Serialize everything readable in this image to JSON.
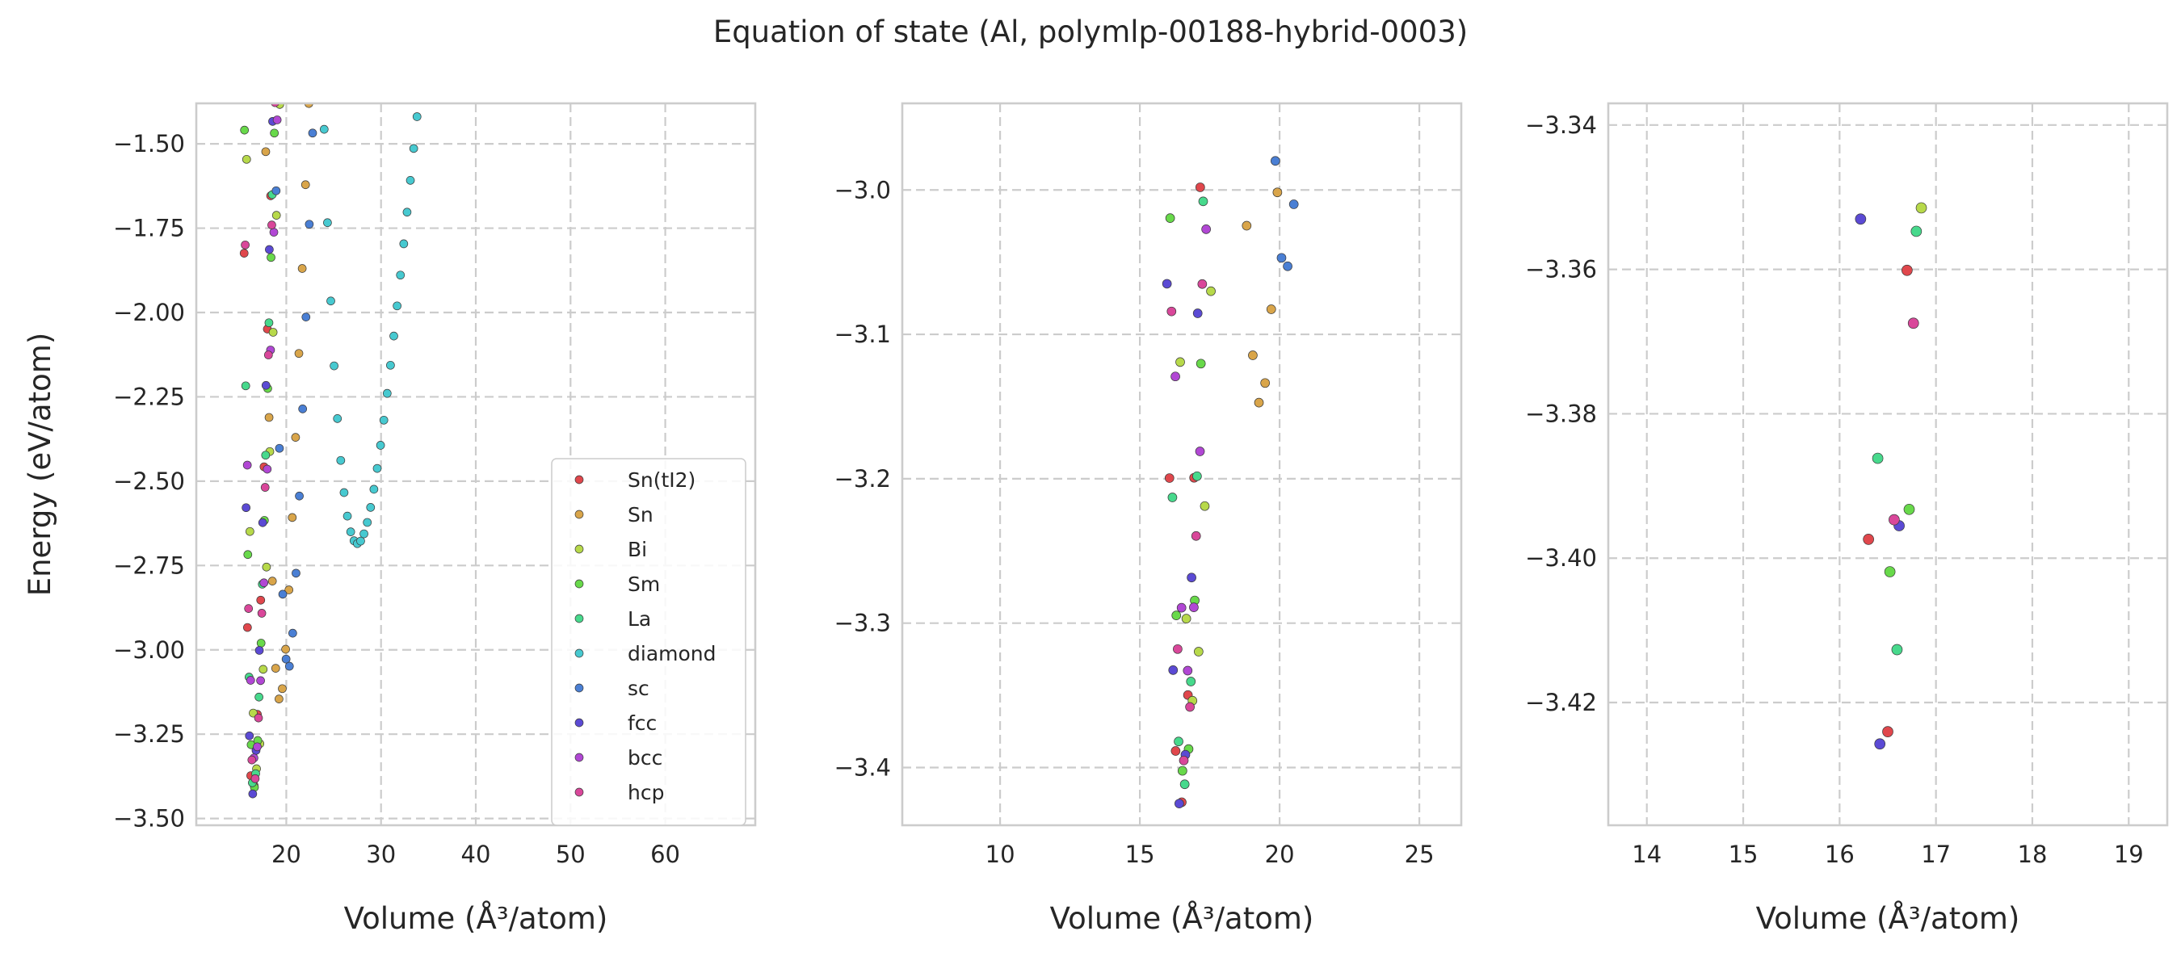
{
  "figure": {
    "title": "Equation of state (Al, polymlp-00188-hybrid-0003)"
  },
  "chart_data": {
    "type": "scatter",
    "title": "Equation of state (Al, polymlp-00188-hybrid-0003)",
    "xlabel": "Volume (Å³/atom)",
    "ylabel": "Energy (eV/atom)",
    "grid": true,
    "legend_placement": "lower-right of first panel",
    "series": [
      {
        "name": "Sn(tI2)",
        "color": "#e0474c",
        "shape": "morse",
        "v0": 16.45,
        "e0": -3.427,
        "a": 0.52,
        "range": [
          11.0,
          42.0
        ]
      },
      {
        "name": "Sn",
        "color": "#d9a54a",
        "shape": "morse",
        "v0": 19.3,
        "e0": -3.148,
        "a": 0.32,
        "range": [
          12.8,
          48.0
        ]
      },
      {
        "name": "Bi",
        "color": "#b7d94a",
        "shape": "morse",
        "v0": 16.9,
        "e0": -3.354,
        "a": 0.45,
        "range": [
          11.0,
          42.0
        ]
      },
      {
        "name": "Sm",
        "color": "#68d94a",
        "shape": "morse",
        "v0": 16.6,
        "e0": -3.409,
        "a": 0.5,
        "range": [
          11.0,
          42.0
        ]
      },
      {
        "name": "La",
        "color": "#47d98c",
        "shape": "morse",
        "v0": 16.55,
        "e0": -3.415,
        "a": 0.5,
        "range": [
          11.0,
          42.0
        ]
      },
      {
        "name": "diamond",
        "color": "#47c9d0",
        "shape": "morse",
        "v0": 27.5,
        "e0": -2.685,
        "a": 0.12,
        "range": [
          19.5,
          69.0
        ]
      },
      {
        "name": "sc",
        "color": "#4a7fd4",
        "shape": "morse",
        "v0": 20.2,
        "e0": -3.057,
        "a": 0.35,
        "range": [
          14.3,
          50.0
        ]
      },
      {
        "name": "fcc",
        "color": "#5b4ad4",
        "shape": "morse",
        "v0": 16.45,
        "e0": -3.427,
        "a": 0.52,
        "range": [
          11.0,
          42.0
        ]
      },
      {
        "name": "bcc",
        "color": "#b147d4",
        "shape": "morse",
        "v0": 16.7,
        "e0": -3.333,
        "a": 0.45,
        "range": [
          11.0,
          42.0
        ]
      },
      {
        "name": "hcp",
        "color": "#d9479a",
        "shape": "morse",
        "v0": 16.6,
        "e0": -3.396,
        "a": 0.5,
        "range": [
          11.0,
          42.0
        ]
      }
    ],
    "panels": [
      {
        "name": "full-range",
        "xlim": [
          10.5,
          69.5
        ],
        "ylim": [
          -3.52,
          -1.38
        ],
        "xticks": [
          20,
          30,
          40,
          50,
          60
        ],
        "xtick_labels": [
          "20",
          "30",
          "40",
          "50",
          "60"
        ],
        "yticks": [
          -3.5,
          -3.25,
          -3.0,
          -2.75,
          -2.5,
          -2.25,
          -2.0,
          -1.75,
          -1.5
        ],
        "ytick_labels": [
          "−3.50",
          "−3.25",
          "−3.00",
          "−2.75",
          "−2.50",
          "−2.25",
          "−2.00",
          "−1.75",
          "−1.50"
        ],
        "point_step": 0.35,
        "marker_radius": 5,
        "show_ylabel": true,
        "show_legend": true
      },
      {
        "name": "zoom-minimum",
        "xlim": [
          6.5,
          26.5
        ],
        "ylim": [
          -3.44,
          -2.94
        ],
        "xticks": [
          10,
          15,
          20,
          25
        ],
        "xtick_labels": [
          "10",
          "15",
          "20",
          "25"
        ],
        "yticks": [
          -3.4,
          -3.3,
          -3.2,
          -3.1,
          -3.0
        ],
        "ytick_labels": [
          "−3.4",
          "−3.3",
          "−3.2",
          "−3.1",
          "−3.0"
        ],
        "point_step": 0.22,
        "marker_radius": 5.5,
        "show_ylabel": false,
        "show_legend": false
      },
      {
        "name": "zoom-detail",
        "xlim": [
          13.6,
          19.4
        ],
        "ylim": [
          -3.437,
          -3.337
        ],
        "xticks": [
          14,
          15,
          16,
          17,
          18,
          19
        ],
        "xtick_labels": [
          "14",
          "15",
          "16",
          "17",
          "18",
          "19"
        ],
        "yticks": [
          -3.42,
          -3.4,
          -3.38,
          -3.36,
          -3.34
        ],
        "ytick_labels": [
          "−3.42",
          "−3.40",
          "−3.38",
          "−3.36",
          "−3.34"
        ],
        "point_step": 0.2,
        "marker_radius": 6.5,
        "show_ylabel": false,
        "show_legend": false
      }
    ]
  }
}
